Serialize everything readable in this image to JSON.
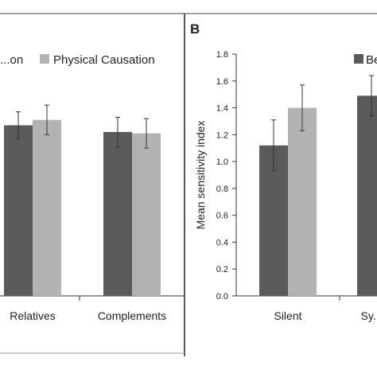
{
  "chart_data": [
    {
      "type": "bar",
      "panel_label": "",
      "ylabel": "",
      "categories": [
        "Relatives",
        "Complements"
      ],
      "series": [
        {
          "name": "...on",
          "color": "#5a5a5a",
          "values": [
            1.27,
            1.22
          ],
          "error": [
            0.1,
            0.11
          ]
        },
        {
          "name": "Physical Causation",
          "color": "#b3b3b3",
          "values": [
            1.31,
            1.21
          ],
          "error": [
            0.11,
            0.11
          ]
        }
      ],
      "ylim": [
        0.0,
        1.8
      ],
      "grid": false,
      "legend": "top"
    },
    {
      "type": "bar",
      "panel_label": "B",
      "ylabel": "Mean sensitivity index",
      "categories": [
        "Silent",
        "Sy..."
      ],
      "series": [
        {
          "name": "Be...",
          "color": "#5a5a5a",
          "values": [
            1.12,
            1.49
          ],
          "error": [
            0.19,
            0.15
          ]
        },
        {
          "name": "",
          "color": "#b3b3b3",
          "values": [
            1.4,
            null
          ],
          "error": [
            0.17,
            null
          ]
        }
      ],
      "ylim": [
        0.0,
        1.8
      ],
      "yticks": [
        "0.0",
        "0.2",
        "0.4",
        "0.6",
        "0.8",
        "1.0",
        "1.2",
        "1.4",
        "1.6",
        "1.8"
      ],
      "grid": false,
      "legend": "top-right"
    }
  ]
}
